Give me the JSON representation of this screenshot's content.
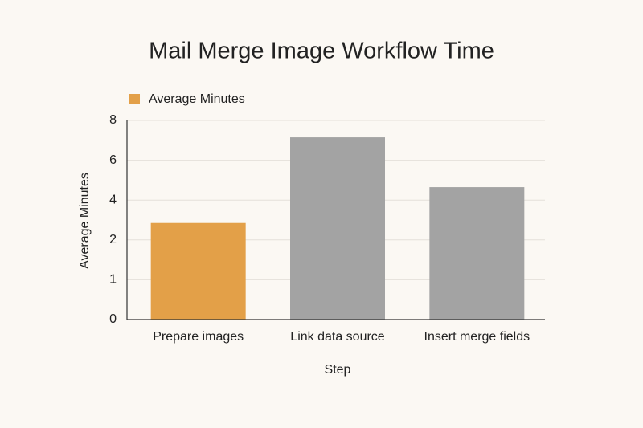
{
  "chart_data": {
    "type": "bar",
    "title": "Mail Merge Image Workflow Time",
    "x_label": "Step",
    "y_label": "Average Minutes",
    "categories": [
      "Prepare images",
      "Link data source",
      "Insert merge fields"
    ],
    "series": [
      {
        "name": "Average Minutes",
        "color": "#e3a048",
        "colors": [
          "#e3a048",
          "#a3a3a3",
          "#a3a3a3"
        ],
        "values": [
          2.85,
          7.15,
          4.65
        ]
      }
    ],
    "ylim": [
      0,
      8
    ],
    "yticks": [
      0,
      1,
      2,
      4,
      6,
      8
    ],
    "grid": true,
    "legend": "top-left"
  }
}
